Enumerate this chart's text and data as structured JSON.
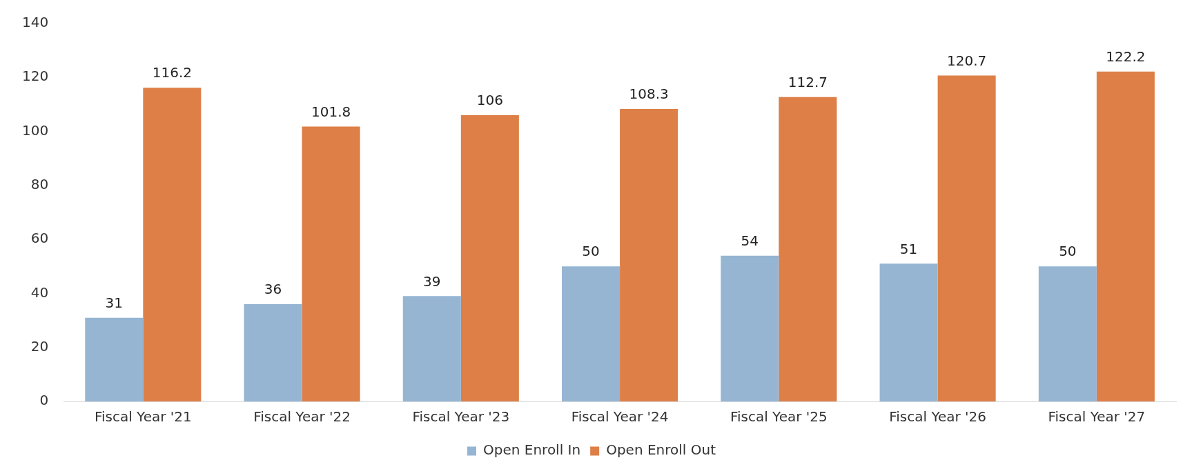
{
  "chart_data": {
    "type": "bar",
    "categories": [
      "Fiscal Year '21",
      "Fiscal Year '22",
      "Fiscal Year '23",
      "Fiscal Year '24",
      "Fiscal Year '25",
      "Fiscal Year '26",
      "Fiscal Year '27"
    ],
    "series": [
      {
        "name": "Open Enroll In",
        "color": "#95b5d3",
        "values": [
          31,
          36,
          39,
          50,
          54,
          51,
          50
        ]
      },
      {
        "name": "Open Enroll Out",
        "color": "#dd7f46",
        "values": [
          116.2,
          101.8,
          106,
          108.3,
          112.7,
          120.7,
          122.2
        ]
      }
    ],
    "ylim": [
      0,
      140
    ],
    "yticks": [
      0,
      20,
      40,
      60,
      80,
      100,
      120,
      140
    ],
    "grid": false,
    "legend": "bottom",
    "data_labels": true
  }
}
